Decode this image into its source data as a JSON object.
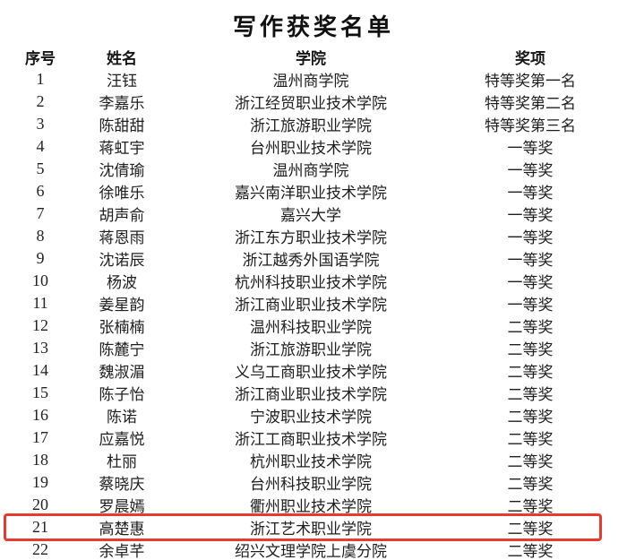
{
  "page": {
    "title": "写作获奖名单",
    "background": "#ffffff",
    "text_color": "#1e1e1e",
    "highlight_color": "#e73b2d"
  },
  "table": {
    "headers": [
      "序号",
      "姓名",
      "学院",
      "奖项"
    ],
    "rows": [
      {
        "no": "1",
        "name": "汪钰",
        "college": "温州商学院",
        "award": "特等奖第一名",
        "highlighted": false
      },
      {
        "no": "2",
        "name": "李嘉乐",
        "college": "浙江经贸职业技术学院",
        "award": "特等奖第二名",
        "highlighted": false
      },
      {
        "no": "3",
        "name": "陈甜甜",
        "college": "浙江旅游职业学院",
        "award": "特等奖第三名",
        "highlighted": false
      },
      {
        "no": "4",
        "name": "蒋虹宇",
        "college": "台州职业技术学院",
        "award": "一等奖",
        "highlighted": false
      },
      {
        "no": "5",
        "name": "沈倩瑜",
        "college": "温州商学院",
        "award": "一等奖",
        "highlighted": false
      },
      {
        "no": "6",
        "name": "徐唯乐",
        "college": "嘉兴南洋职业技术学院",
        "award": "一等奖",
        "highlighted": false
      },
      {
        "no": "7",
        "name": "胡声俞",
        "college": "嘉兴大学",
        "award": "一等奖",
        "highlighted": false
      },
      {
        "no": "8",
        "name": "蒋恩雨",
        "college": "浙江东方职业技术学院",
        "award": "一等奖",
        "highlighted": false
      },
      {
        "no": "9",
        "name": "沈诺辰",
        "college": "浙江越秀外国语学院",
        "award": "一等奖",
        "highlighted": false
      },
      {
        "no": "10",
        "name": "杨波",
        "college": "杭州科技职业技术学院",
        "award": "一等奖",
        "highlighted": false
      },
      {
        "no": "11",
        "name": "姜星韵",
        "college": "浙江商业职业技术学院",
        "award": "一等奖",
        "highlighted": false
      },
      {
        "no": "12",
        "name": "张楠楠",
        "college": "温州科技职业学院",
        "award": "二等奖",
        "highlighted": false
      },
      {
        "no": "13",
        "name": "陈麓宁",
        "college": "浙江旅游职业学院",
        "award": "二等奖",
        "highlighted": false
      },
      {
        "no": "14",
        "name": "魏淑湄",
        "college": "义乌工商职业技术学院",
        "award": "二等奖",
        "highlighted": false
      },
      {
        "no": "15",
        "name": "陈子怡",
        "college": "浙江商业职业技术学院",
        "award": "二等奖",
        "highlighted": false
      },
      {
        "no": "16",
        "name": "陈诺",
        "college": "宁波职业技术学院",
        "award": "二等奖",
        "highlighted": false
      },
      {
        "no": "17",
        "name": "应嘉悦",
        "college": "浙江工商职业技术学院",
        "award": "二等奖",
        "highlighted": false
      },
      {
        "no": "18",
        "name": "杜丽",
        "college": "杭州职业技术学院",
        "award": "二等奖",
        "highlighted": false
      },
      {
        "no": "19",
        "name": "蔡晓庆",
        "college": "台州科技职业学院",
        "award": "二等奖",
        "highlighted": false
      },
      {
        "no": "20",
        "name": "罗晨嫣",
        "college": "衢州职业技术学院",
        "award": "二等奖",
        "highlighted": false
      },
      {
        "no": "21",
        "name": "高楚惠",
        "college": "浙江艺术职业学院",
        "award": "二等奖",
        "highlighted": true
      },
      {
        "no": "22",
        "name": "余卓芊",
        "college": "绍兴文理学院上虞分院",
        "award": "二等奖",
        "highlighted": false
      }
    ]
  }
}
